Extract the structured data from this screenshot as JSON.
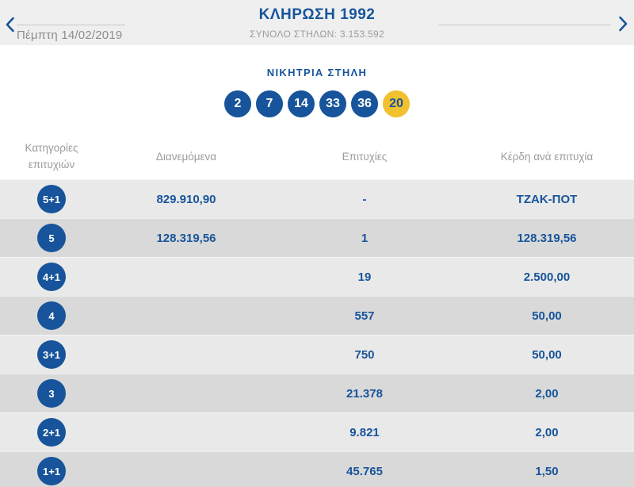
{
  "header": {
    "prev_icon": "chevron-left-icon",
    "next_icon": "chevron-right-icon",
    "date": "Πέμπτη 14/02/2019",
    "title": "ΚΛΗΡΩΣΗ 1992",
    "total_columns_label": "ΣΥΝΟΛΟ ΣΤΗΛΩΝ: 3.153.592"
  },
  "winning_column": {
    "title": "ΝΙΚΗΤΡΙΑ ΣΤΗΛΗ",
    "numbers": [
      "2",
      "7",
      "14",
      "33",
      "36"
    ],
    "bonus_number": "20"
  },
  "table": {
    "headers": [
      "Κατηγορίες επιτυχιών",
      "Διανεμόμενα",
      "Επιτυχίες",
      "Κέρδη ανά επιτυχία"
    ],
    "rows": [
      {
        "category": "5+1",
        "distributed": "829.910,90",
        "wins": "-",
        "prize": "ΤΖΑΚ-ΠΟΤ"
      },
      {
        "category": "5",
        "distributed": "128.319,56",
        "wins": "1",
        "prize": "128.319,56"
      },
      {
        "category": "4+1",
        "distributed": "",
        "wins": "19",
        "prize": "2.500,00"
      },
      {
        "category": "4",
        "distributed": "",
        "wins": "557",
        "prize": "50,00"
      },
      {
        "category": "3+1",
        "distributed": "",
        "wins": "750",
        "prize": "50,00"
      },
      {
        "category": "3",
        "distributed": "",
        "wins": "21.378",
        "prize": "2,00"
      },
      {
        "category": "2+1",
        "distributed": "",
        "wins": "9.821",
        "prize": "2,00"
      },
      {
        "category": "1+1",
        "distributed": "",
        "wins": "45.765",
        "prize": "1,50"
      }
    ]
  },
  "colors": {
    "brand_blue": "#17549B",
    "bonus_yellow": "#F1C12E",
    "topbar_gray": "#EFEFEF",
    "row_light": "#E9E9E9",
    "row_dark": "#D9D9D9",
    "muted_text": "#9B9B9B"
  }
}
